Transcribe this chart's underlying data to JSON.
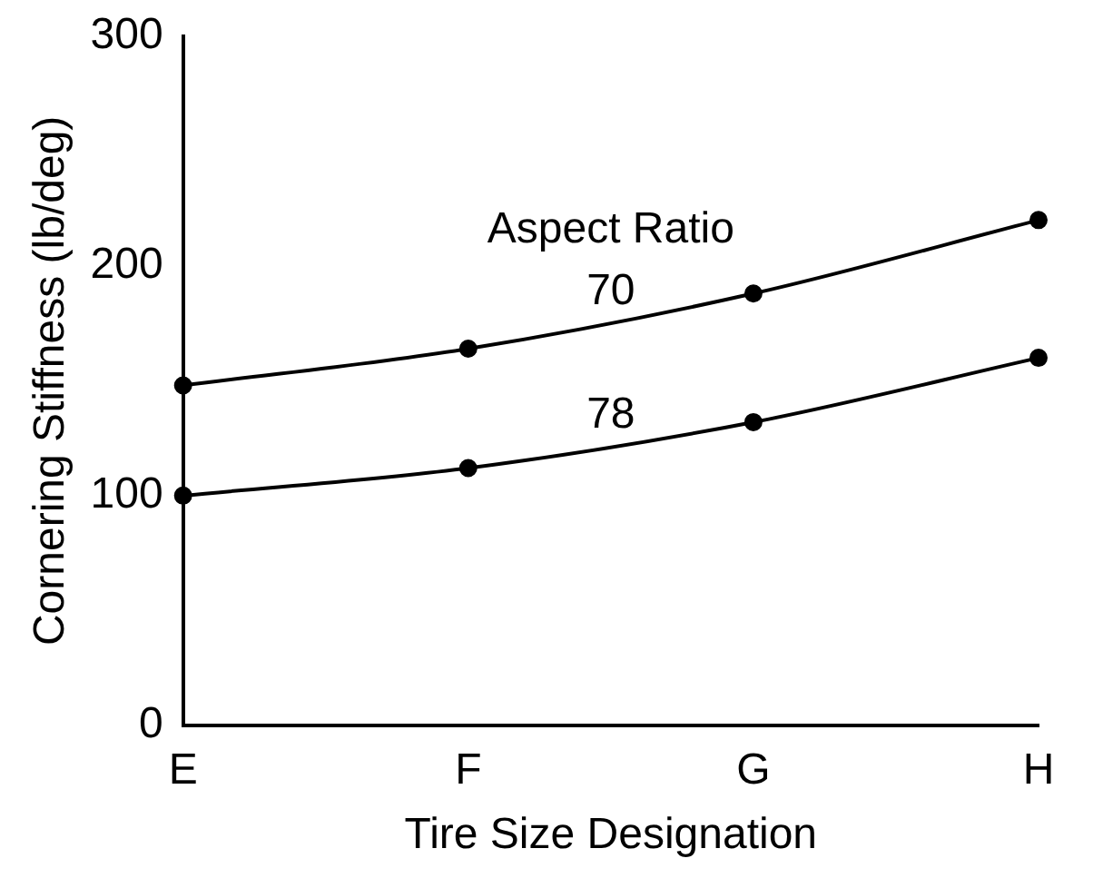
{
  "chart_data": {
    "type": "line",
    "xlabel": "Tire Size Designation",
    "ylabel": "Cornering Stiffness (lb/deg)",
    "categories": [
      "E",
      "F",
      "G",
      "H"
    ],
    "series": [
      {
        "name": "70",
        "color": "#000000",
        "values": [
          148,
          164,
          188,
          220
        ]
      },
      {
        "name": "78",
        "color": "#000000",
        "values": [
          100,
          112,
          132,
          160
        ]
      }
    ],
    "annotations": [
      "Aspect Ratio"
    ],
    "ylim": [
      0,
      300
    ],
    "yticks": [
      0,
      100,
      200,
      300
    ],
    "grid": false,
    "legend": false,
    "marker": "circle",
    "line_style": "solid"
  }
}
